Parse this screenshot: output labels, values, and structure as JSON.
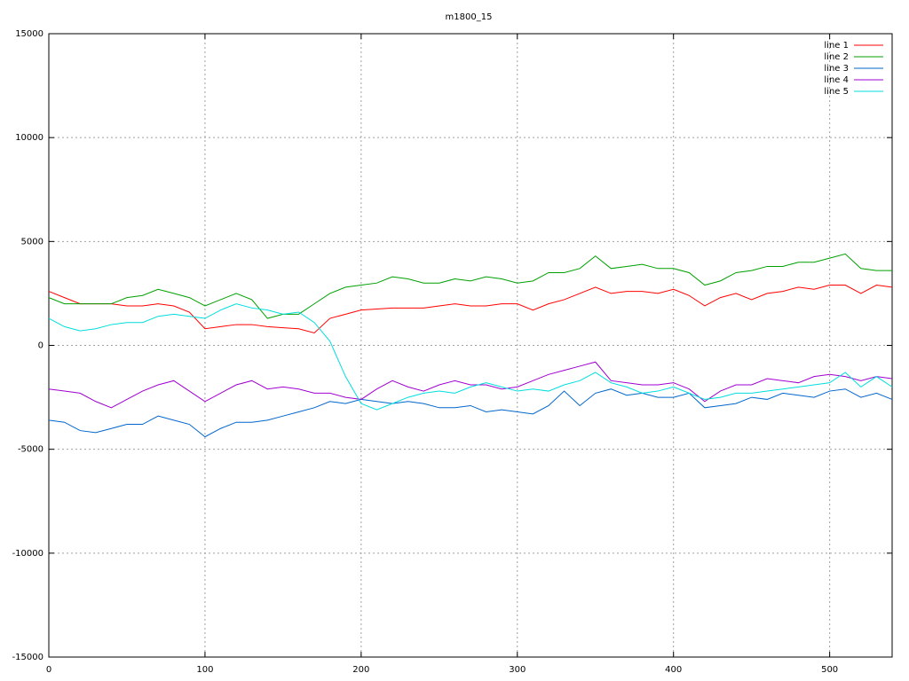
{
  "chart_data": {
    "type": "line",
    "title": "m1800_15",
    "x": [
      0,
      10,
      20,
      30,
      40,
      50,
      60,
      70,
      80,
      90,
      100,
      110,
      120,
      130,
      140,
      150,
      160,
      170,
      180,
      190,
      200,
      210,
      220,
      230,
      240,
      250,
      260,
      270,
      280,
      290,
      300,
      310,
      320,
      330,
      340,
      350,
      360,
      370,
      380,
      390,
      400,
      410,
      420,
      430,
      440,
      450,
      460,
      470,
      480,
      490,
      500,
      510,
      520,
      530,
      540
    ],
    "series": [
      {
        "name": "line 1",
        "color": "#ff0000",
        "values": [
          2600,
          2300,
          2000,
          2000,
          2000,
          1900,
          1900,
          2000,
          1900,
          1600,
          800,
          900,
          1000,
          1000,
          900,
          850,
          800,
          600,
          1300,
          1500,
          1700,
          1750,
          1800,
          1800,
          1800,
          1900,
          2000,
          1900,
          1900,
          2000,
          2000,
          1700,
          2000,
          2200,
          2500,
          2800,
          2500,
          2600,
          2600,
          2500,
          2700,
          2400,
          1900,
          2300,
          2500,
          2200,
          2500,
          2600,
          2800,
          2700,
          2900,
          2900,
          2500,
          2900,
          2800
        ]
      },
      {
        "name": "line 2",
        "color": "#00a000",
        "values": [
          2300,
          2000,
          2000,
          2000,
          2000,
          2300,
          2400,
          2700,
          2500,
          2300,
          1900,
          2200,
          2500,
          2200,
          1300,
          1500,
          1500,
          2000,
          2500,
          2800,
          2900,
          3000,
          3300,
          3200,
          3000,
          3000,
          3200,
          3100,
          3300,
          3200,
          3000,
          3100,
          3500,
          3500,
          3700,
          4300,
          3700,
          3800,
          3900,
          3700,
          3700,
          3500,
          2900,
          3100,
          3500,
          3600,
          3800,
          3800,
          4000,
          4000,
          4200,
          4400,
          3700,
          3600,
          3600
        ]
      },
      {
        "name": "line 3",
        "color": "#0066cc",
        "values": [
          -3600,
          -3700,
          -4100,
          -4200,
          -4000,
          -3800,
          -3800,
          -3400,
          -3600,
          -3800,
          -4400,
          -4000,
          -3700,
          -3700,
          -3600,
          -3400,
          -3200,
          -3000,
          -2700,
          -2800,
          -2600,
          -2700,
          -2800,
          -2700,
          -2800,
          -3000,
          -3000,
          -2900,
          -3200,
          -3100,
          -3200,
          -3300,
          -2900,
          -2200,
          -2900,
          -2300,
          -2100,
          -2400,
          -2300,
          -2500,
          -2500,
          -2300,
          -3000,
          -2900,
          -2800,
          -2500,
          -2600,
          -2300,
          -2400,
          -2500,
          -2200,
          -2100,
          -2500,
          -2300,
          -2600
        ]
      },
      {
        "name": "line 4",
        "color": "#a000d0",
        "values": [
          -2100,
          -2200,
          -2300,
          -2700,
          -3000,
          -2600,
          -2200,
          -1900,
          -1700,
          -2200,
          -2700,
          -2300,
          -1900,
          -1700,
          -2100,
          -2000,
          -2100,
          -2300,
          -2300,
          -2500,
          -2600,
          -2100,
          -1700,
          -2000,
          -2200,
          -1900,
          -1700,
          -1900,
          -1900,
          -2100,
          -2000,
          -1700,
          -1400,
          -1200,
          -1000,
          -800,
          -1700,
          -1800,
          -1900,
          -1900,
          -1800,
          -2100,
          -2700,
          -2200,
          -1900,
          -1900,
          -1600,
          -1700,
          -1800,
          -1500,
          -1400,
          -1500,
          -1700,
          -1500,
          -1600
        ]
      },
      {
        "name": "line 5",
        "color": "#00dddd",
        "values": [
          1300,
          900,
          700,
          800,
          1000,
          1100,
          1100,
          1400,
          1500,
          1400,
          1300,
          1700,
          2000,
          1800,
          1700,
          1500,
          1600,
          1100,
          200,
          -1500,
          -2800,
          -3100,
          -2800,
          -2500,
          -2300,
          -2200,
          -2300,
          -2000,
          -1800,
          -2000,
          -2200,
          -2100,
          -2200,
          -1900,
          -1700,
          -1300,
          -1800,
          -2000,
          -2300,
          -2200,
          -2000,
          -2300,
          -2600,
          -2500,
          -2300,
          -2300,
          -2200,
          -2100,
          -2000,
          -1900,
          -1800,
          -1300,
          -2000,
          -1500,
          -2000
        ]
      }
    ],
    "xlim": [
      0,
      540
    ],
    "xticks": [
      0,
      100,
      200,
      300,
      400,
      500
    ],
    "ylim": [
      -15000,
      15000
    ],
    "yticks": [
      -15000,
      -10000,
      -5000,
      0,
      5000,
      10000,
      15000
    ],
    "grid": true,
    "legend": "top-right"
  }
}
